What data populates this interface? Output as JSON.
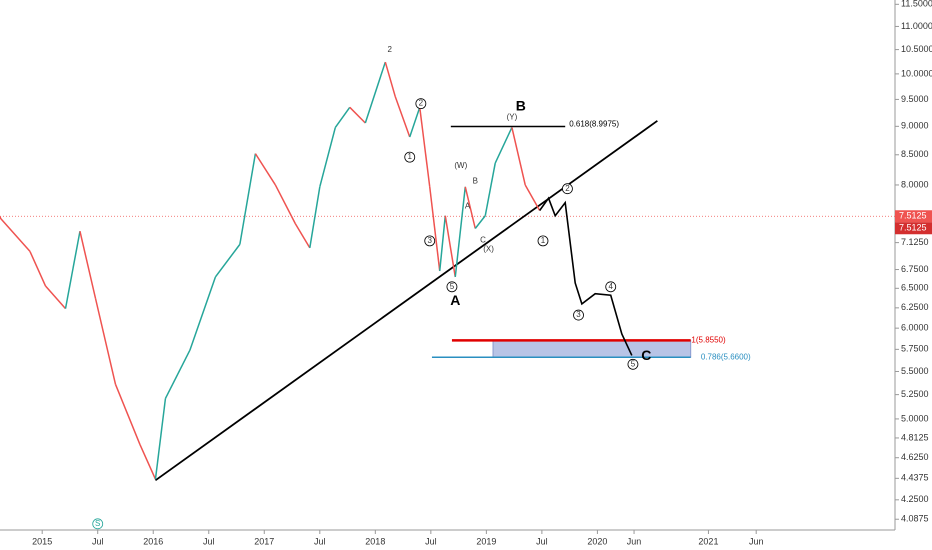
{
  "chart_data": {
    "type": "line",
    "log_scale": true,
    "xlim": [
      2014.62,
      2022.68
    ],
    "ylim": [
      4.0,
      11.6
    ],
    "xticks": [
      2015,
      {
        "value": 2015.5,
        "label": "Jul"
      },
      2016,
      {
        "value": 2016.5,
        "label": "Jul"
      },
      2017,
      {
        "value": 2017.5,
        "label": "Jul"
      },
      2018,
      {
        "value": 2018.5,
        "label": "Jul"
      },
      2019,
      {
        "value": 2019.5,
        "label": "Jul"
      },
      2020,
      {
        "value": 2020.33,
        "label": "Jun"
      },
      2021,
      {
        "value": 2021.43,
        "label": "Jun"
      }
    ],
    "yticks": [
      {
        "value": 11.5,
        "label": "11.5000"
      },
      {
        "value": 11,
        "label": "11.0000"
      },
      {
        "value": 10.5,
        "label": "10.5000"
      },
      {
        "value": 10,
        "label": "10.0000"
      },
      {
        "value": 9.5,
        "label": "9.5000"
      },
      {
        "value": 9,
        "label": "9.0000"
      },
      {
        "value": 8.5,
        "label": "8.5000"
      },
      {
        "value": 8,
        "label": "8.0000"
      },
      {
        "value": 7.125,
        "label": "7.1250"
      },
      {
        "value": 6.75,
        "label": "6.7500"
      },
      {
        "value": 6.5,
        "label": "6.5000"
      },
      {
        "value": 6.25,
        "label": "6.2500"
      },
      {
        "value": 6,
        "label": "6.0000"
      },
      {
        "value": 5.75,
        "label": "5.7500"
      },
      {
        "value": 5.5,
        "label": "5.5000"
      },
      {
        "value": 5.25,
        "label": "5.2500"
      },
      {
        "value": 5,
        "label": "5.0000"
      },
      4.8125,
      {
        "value": 4.625,
        "label": "4.6250"
      },
      4.4375,
      {
        "value": 4.25,
        "label": "4.2500"
      },
      4.0875
    ],
    "series": [
      {
        "color_up": "#26a69a",
        "color_down": "#ef5350",
        "x": [
          2014.62,
          2014.89,
          2015.03,
          2015.21,
          2015.34,
          2015.48,
          2015.66,
          2015.88,
          2016.02,
          2016.11,
          2016.33,
          2016.56,
          2016.78,
          2016.92,
          2017.1,
          2017.28,
          2017.41,
          2017.5,
          2017.64,
          2017.77,
          2017.91,
          2018.09,
          2018.18,
          2018.31,
          2018.4,
          2018.49,
          2018.58,
          2018.63,
          2018.72,
          2018.81,
          2018.9,
          2018.99,
          2019.08,
          2019.23,
          2019.35,
          2019.48
        ],
        "values": [
          7.49,
          7.0,
          6.53,
          6.24,
          7.29,
          6.37,
          5.36,
          4.75,
          4.43,
          5.21,
          5.74,
          6.65,
          7.1,
          8.52,
          8.0,
          7.4,
          7.05,
          7.97,
          8.98,
          9.35,
          9.06,
          10.24,
          9.55,
          8.81,
          9.35,
          7.97,
          6.73,
          7.52,
          6.65,
          7.97,
          7.33,
          7.52,
          8.36,
          8.98,
          8.0,
          7.6
        ]
      },
      {
        "color": "#000000",
        "x": [
          2019.48,
          2019.56,
          2019.62,
          2019.71,
          2019.8,
          2019.86,
          2019.98,
          2020.12,
          2020.22,
          2020.31
        ],
        "values": [
          7.6,
          7.79,
          7.52,
          7.72,
          6.57,
          6.3,
          6.43,
          6.41,
          5.93,
          5.68
        ]
      }
    ],
    "trendline": {
      "x": [
        2016.02,
        2020.54
      ],
      "values": [
        4.42,
        9.1
      ],
      "color": "#000000"
    },
    "levels": [
      {
        "value": 8.9975,
        "label": "0.618(8.9975)",
        "x": [
          2018.68,
          2019.71
        ],
        "color": "#000000"
      },
      {
        "value": 5.855,
        "label": "1(5.8550)",
        "x": [
          2018.69,
          2020.84
        ],
        "color": "#e00000"
      },
      {
        "value": 5.66,
        "label": "0.786(5.6600)",
        "x": [
          2018.51,
          2020.84
        ],
        "color": "#2a8fc0"
      }
    ],
    "zone": {
      "x": [
        2019.06,
        2020.84
      ],
      "values": [
        5.855,
        5.66
      ],
      "color": "#b8c4e6"
    },
    "last_price": 7.5125,
    "annotations": [
      {
        "text": "2",
        "x": 2018.13,
        "y": 10.49
      },
      {
        "text": "B",
        "x": 2019.31,
        "y": 9.36,
        "bold": true
      },
      {
        "text": "A",
        "x": 2018.72,
        "y": 6.33,
        "bold": true
      },
      {
        "text": "C",
        "x": 2020.44,
        "y": 5.67,
        "bold": true
      },
      {
        "text": "(Y)",
        "x": 2019.23,
        "y": 9.16
      },
      {
        "text": "(W)",
        "x": 2018.77,
        "y": 8.31
      },
      {
        "text": "(X)",
        "x": 2019.02,
        "y": 7.03
      },
      {
        "text": "B",
        "x": 2018.9,
        "y": 8.06
      },
      {
        "text": "A",
        "x": 2018.83,
        "y": 7.66
      },
      {
        "text": "C",
        "x": 2018.97,
        "y": 7.16
      },
      {
        "text": "1",
        "x": 2018.31,
        "y": 8.46,
        "circle": true
      },
      {
        "text": "2",
        "x": 2018.41,
        "y": 9.42,
        "circle": true
      },
      {
        "text": "3",
        "x": 2018.49,
        "y": 7.15,
        "circle": true
      },
      {
        "text": "5",
        "x": 2018.69,
        "y": 6.52,
        "circle": true
      },
      {
        "text": "1",
        "x": 2019.51,
        "y": 7.15,
        "circle": true
      },
      {
        "text": "2",
        "x": 2019.73,
        "y": 7.94,
        "circle": true
      },
      {
        "text": "3",
        "x": 2019.83,
        "y": 6.16,
        "circle": true
      },
      {
        "text": "4",
        "x": 2020.12,
        "y": 6.52,
        "circle": true
      },
      {
        "text": "5",
        "x": 2020.32,
        "y": 5.58,
        "circle": true
      },
      {
        "text": "S",
        "x": 2015.5,
        "y": 4.05,
        "circle": true,
        "color": "#26a69a"
      }
    ]
  }
}
